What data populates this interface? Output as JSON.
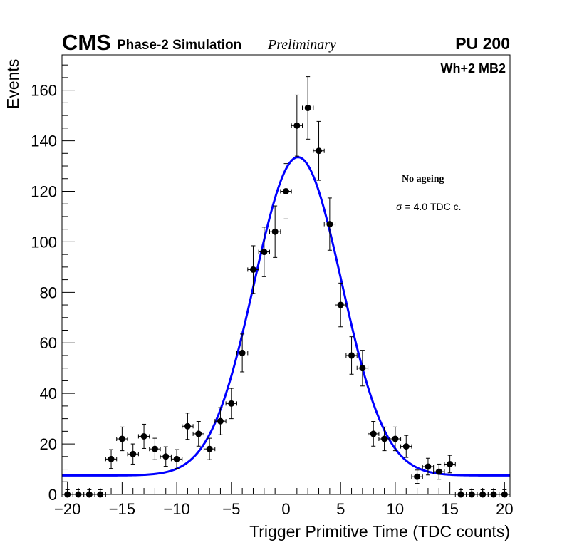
{
  "header": {
    "experiment": "CMS",
    "subtitle": "Phase-2 Simulation",
    "status": "Preliminary",
    "pileup": "PU 200"
  },
  "chart_data": {
    "type": "scatter",
    "title": "",
    "xlabel": "Trigger Primitive Time (TDC counts)",
    "ylabel": "Events",
    "xlim": [
      -20.5,
      20.5
    ],
    "ylim": [
      0,
      174
    ],
    "x_ticks": [
      -20,
      -15,
      -10,
      -5,
      0,
      5,
      10,
      15,
      20
    ],
    "x_tick_labels": [
      "−20",
      "−15",
      "−10",
      "−5",
      "0",
      "5",
      "10",
      "15",
      "20"
    ],
    "y_ticks": [
      0,
      20,
      40,
      60,
      80,
      100,
      120,
      140,
      160
    ],
    "y_tick_labels": [
      "0",
      "20",
      "40",
      "60",
      "80",
      "100",
      "120",
      "140",
      "160"
    ],
    "grid": false,
    "annotations": {
      "chamber": "Wh+2 MB2",
      "condition": "No ageing",
      "resolution": "σ = 4.0 TDC c."
    },
    "series": [
      {
        "name": "Simulation",
        "kind": "points-with-errors",
        "color": "#000000",
        "x": [
          -20,
          -19,
          -18,
          -17,
          -16,
          -15,
          -14,
          -13,
          -12,
          -11,
          -10,
          -9,
          -8,
          -7,
          -6,
          -5,
          -4,
          -3,
          -2,
          -1,
          0,
          1,
          2,
          3,
          4,
          5,
          6,
          7,
          8,
          9,
          10,
          11,
          12,
          13,
          14,
          15,
          16,
          17,
          18,
          19,
          20
        ],
        "y": [
          0,
          0,
          0,
          0,
          14,
          22,
          16,
          23,
          18,
          15,
          14,
          27,
          24,
          18,
          29,
          36,
          56,
          89,
          96,
          104,
          120,
          146,
          153,
          136,
          107,
          75,
          55,
          50,
          24,
          22,
          22,
          19,
          7,
          11,
          9,
          12,
          0,
          0,
          0,
          0,
          0
        ],
        "x_error": 0.5,
        "y_error": "sqrt(N)"
      },
      {
        "name": "Gaussian fit",
        "kind": "line",
        "color": "#0000ff",
        "function": "constant + gaussian",
        "constant": 7.5,
        "amplitude": 126,
        "mean": 1.1,
        "sigma": 4.0
      }
    ]
  }
}
